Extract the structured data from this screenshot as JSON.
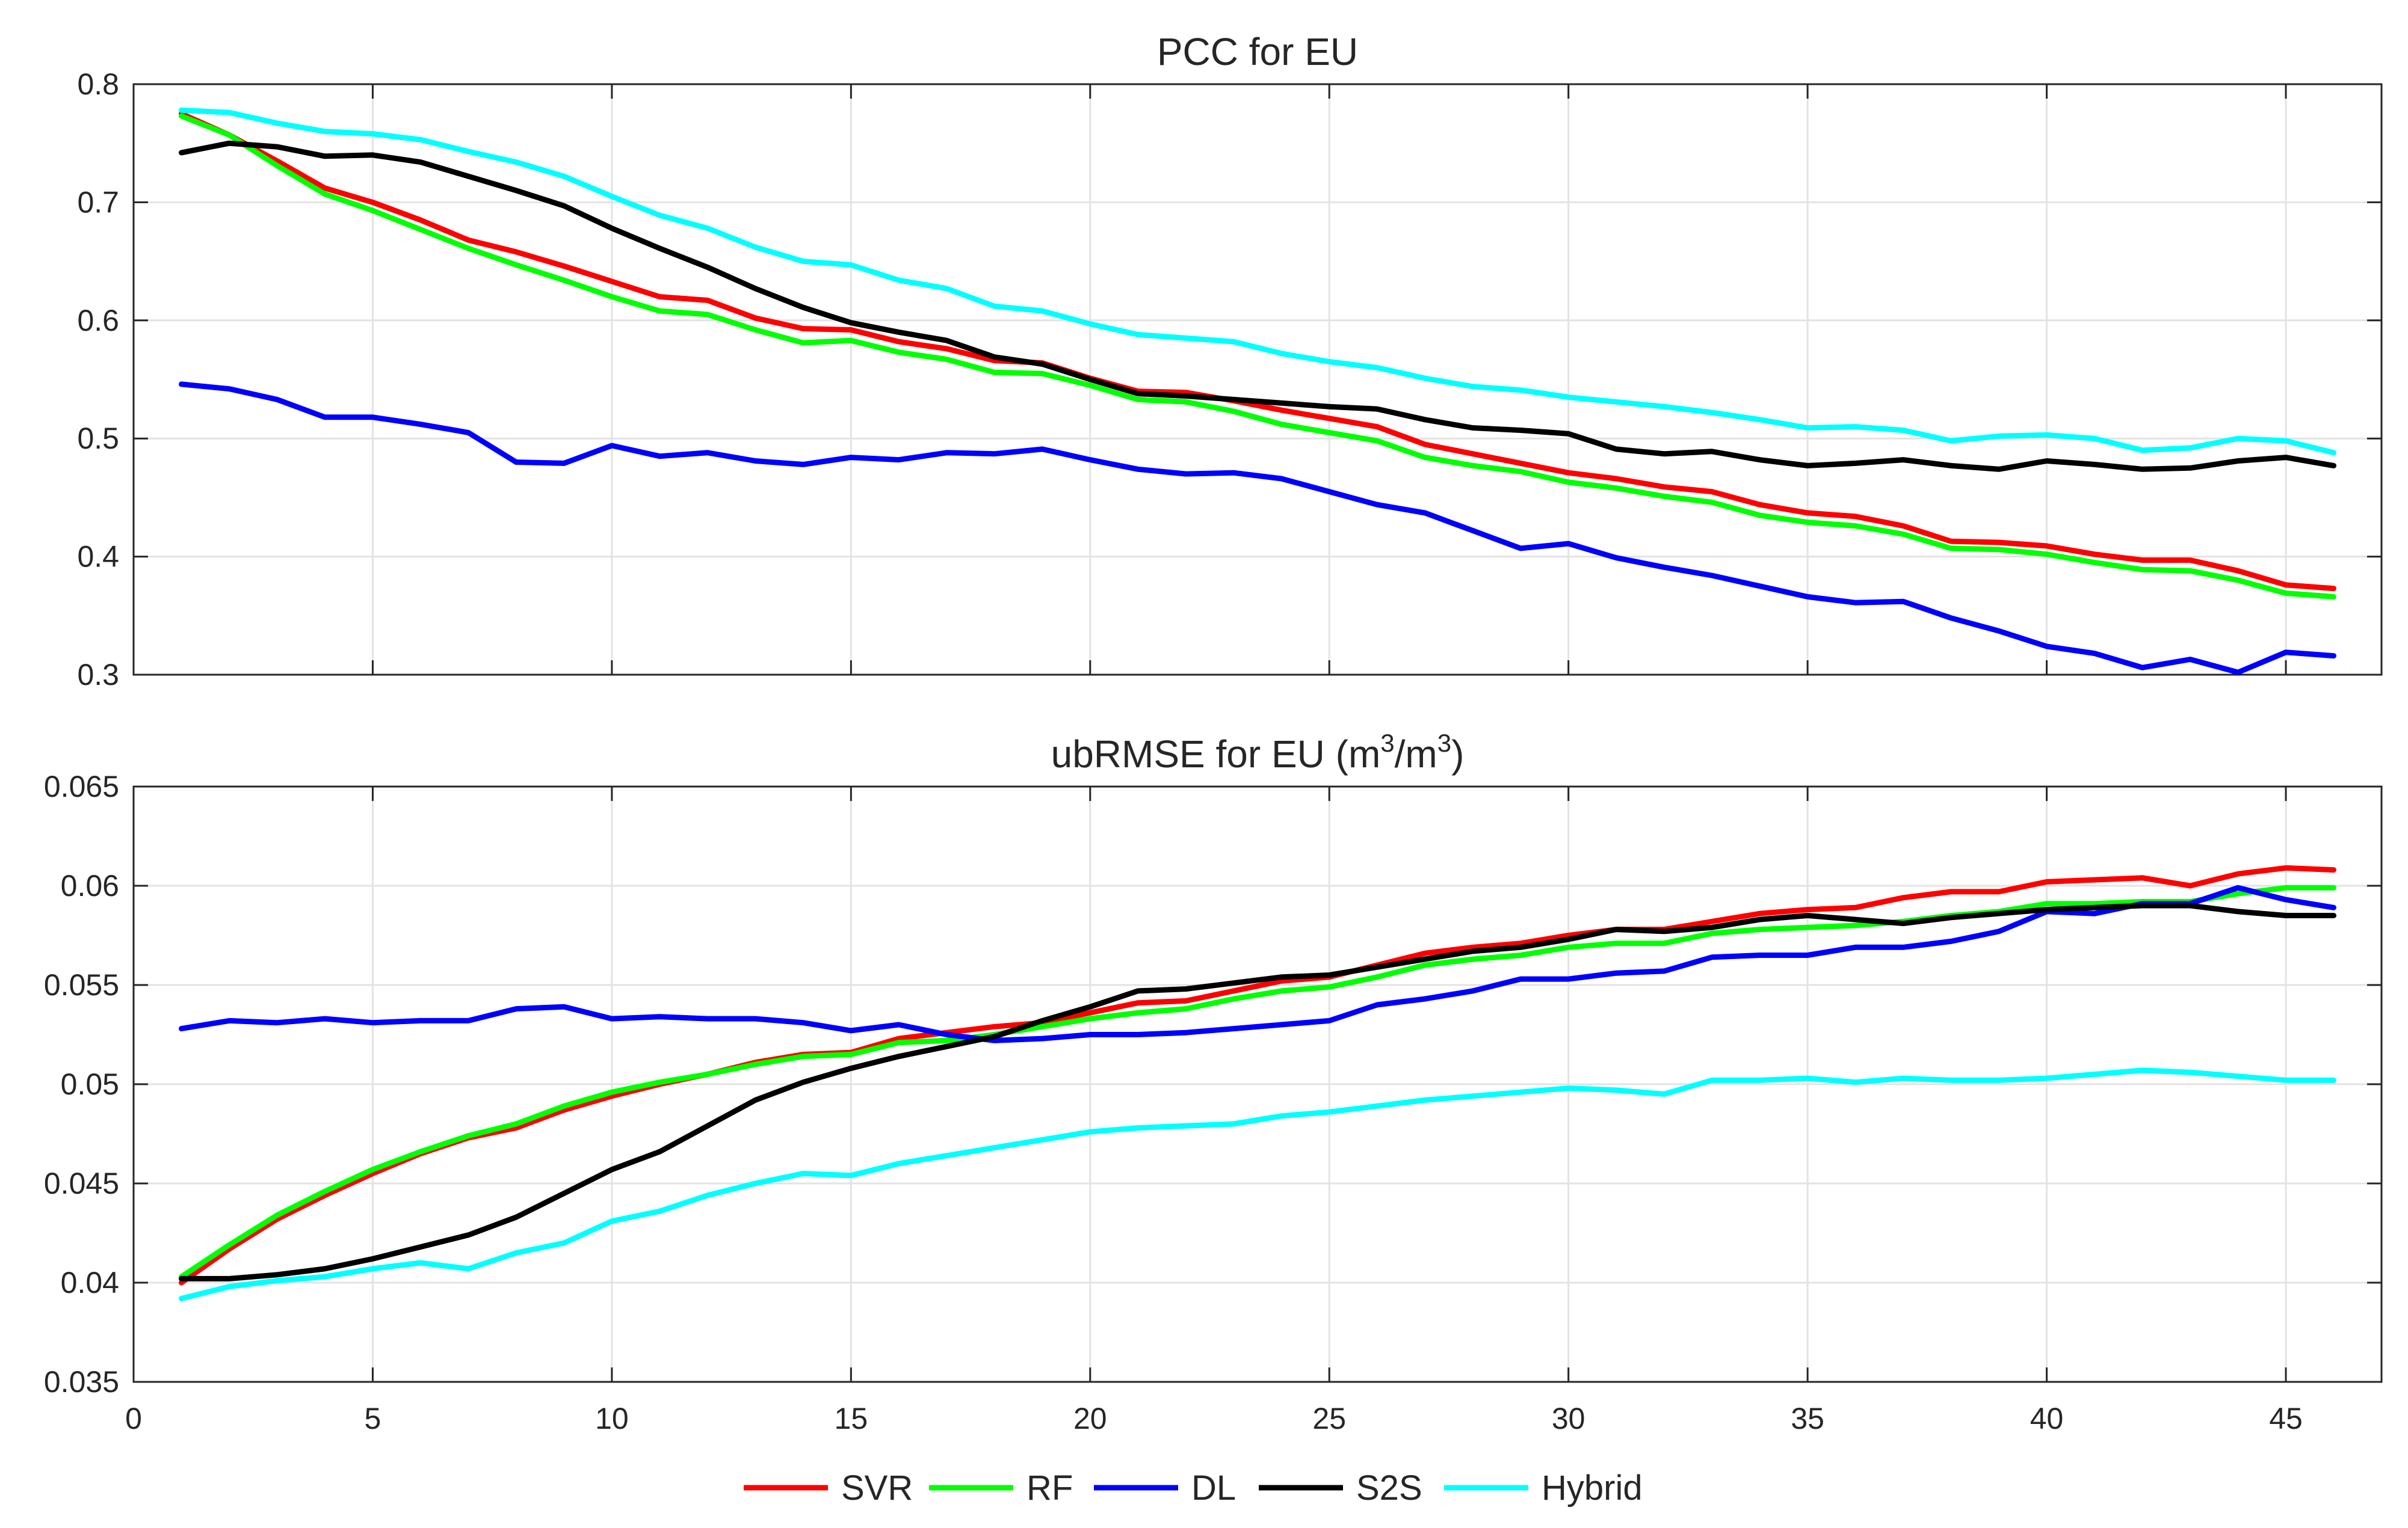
{
  "chart_data": [
    {
      "type": "line",
      "title": "PCC for EU",
      "xlabel": "",
      "ylabel": "",
      "xlim": [
        0,
        47
      ],
      "ylim": [
        0.3,
        0.8
      ],
      "yticks": [
        "0.3",
        "0.4",
        "0.5",
        "0.6",
        "0.7",
        "0.8"
      ],
      "xticks": [],
      "grid": true,
      "x": [
        1,
        2,
        3,
        4,
        5,
        6,
        7,
        8,
        9,
        10,
        11,
        12,
        13,
        14,
        15,
        16,
        17,
        18,
        19,
        20,
        21,
        22,
        23,
        24,
        25,
        26,
        27,
        28,
        29,
        30,
        31,
        32,
        33,
        34,
        35,
        36,
        37,
        38,
        39,
        40,
        41,
        42,
        43,
        44,
        45,
        46
      ],
      "series": [
        {
          "name": "SVR",
          "color": "#ff0000",
          "values": [
            0.775,
            0.757,
            0.735,
            0.712,
            0.7,
            0.685,
            0.668,
            0.658,
            0.646,
            0.633,
            0.62,
            0.617,
            0.602,
            0.593,
            0.592,
            0.582,
            0.576,
            0.566,
            0.564,
            0.551,
            0.54,
            0.539,
            0.532,
            0.524,
            0.517,
            0.51,
            0.495,
            0.487,
            0.479,
            0.471,
            0.466,
            0.459,
            0.455,
            0.444,
            0.437,
            0.434,
            0.426,
            0.413,
            0.412,
            0.409,
            0.402,
            0.397,
            0.397,
            0.388,
            0.376,
            0.373
          ]
        },
        {
          "name": "RF",
          "color": "#00ff00",
          "values": [
            0.773,
            0.757,
            0.731,
            0.707,
            0.693,
            0.677,
            0.661,
            0.647,
            0.634,
            0.62,
            0.608,
            0.605,
            0.592,
            0.581,
            0.583,
            0.573,
            0.567,
            0.556,
            0.555,
            0.545,
            0.533,
            0.531,
            0.523,
            0.512,
            0.505,
            0.498,
            0.484,
            0.477,
            0.472,
            0.463,
            0.458,
            0.451,
            0.446,
            0.435,
            0.429,
            0.426,
            0.419,
            0.407,
            0.406,
            0.402,
            0.395,
            0.389,
            0.388,
            0.38,
            0.369,
            0.366
          ]
        },
        {
          "name": "DL",
          "color": "#0000ff",
          "values": [
            0.546,
            0.542,
            0.533,
            0.518,
            0.518,
            0.512,
            0.505,
            0.48,
            0.479,
            0.494,
            0.485,
            0.488,
            0.481,
            0.478,
            0.484,
            0.482,
            0.488,
            0.487,
            0.491,
            0.482,
            0.474,
            0.47,
            0.471,
            0.466,
            0.455,
            0.444,
            0.437,
            0.422,
            0.407,
            0.411,
            0.399,
            0.391,
            0.384,
            0.375,
            0.366,
            0.361,
            0.362,
            0.348,
            0.337,
            0.324,
            0.318,
            0.306,
            0.313,
            0.302,
            0.319,
            0.316
          ]
        },
        {
          "name": "S2S",
          "color": "#000000",
          "values": [
            0.742,
            0.75,
            0.747,
            0.739,
            0.74,
            0.734,
            0.722,
            0.71,
            0.697,
            0.678,
            0.661,
            0.645,
            0.627,
            0.611,
            0.598,
            0.59,
            0.583,
            0.569,
            0.563,
            0.55,
            0.538,
            0.536,
            0.533,
            0.53,
            0.527,
            0.525,
            0.516,
            0.509,
            0.507,
            0.504,
            0.491,
            0.487,
            0.489,
            0.482,
            0.477,
            0.479,
            0.482,
            0.477,
            0.474,
            0.481,
            0.478,
            0.474,
            0.475,
            0.481,
            0.484,
            0.477
          ]
        },
        {
          "name": "Hybrid",
          "color": "#00ffff",
          "values": [
            0.778,
            0.776,
            0.767,
            0.76,
            0.758,
            0.753,
            0.743,
            0.734,
            0.722,
            0.705,
            0.689,
            0.678,
            0.662,
            0.65,
            0.647,
            0.634,
            0.627,
            0.612,
            0.608,
            0.597,
            0.588,
            0.585,
            0.582,
            0.572,
            0.565,
            0.56,
            0.551,
            0.544,
            0.541,
            0.535,
            0.531,
            0.527,
            0.522,
            0.516,
            0.509,
            0.51,
            0.507,
            0.498,
            0.502,
            0.503,
            0.5,
            0.49,
            0.492,
            0.5,
            0.498,
            0.488
          ]
        }
      ]
    },
    {
      "type": "line",
      "title": "ubRMSE for EU (m3/m3)",
      "title_parts": {
        "before": "ubRMSE for EU (m",
        "sup1": "3",
        "mid": "/m",
        "sup2": "3",
        "after": ")"
      },
      "xlabel": "",
      "ylabel": "",
      "xlim": [
        0,
        47
      ],
      "ylim": [
        0.035,
        0.065
      ],
      "yticks": [
        "0.035",
        "0.04",
        "0.045",
        "0.05",
        "0.055",
        "0.06",
        "0.065"
      ],
      "xticks": [
        "0",
        "5",
        "10",
        "15",
        "20",
        "25",
        "30",
        "35",
        "40",
        "45"
      ],
      "grid": true,
      "x": [
        1,
        2,
        3,
        4,
        5,
        6,
        7,
        8,
        9,
        10,
        11,
        12,
        13,
        14,
        15,
        16,
        17,
        18,
        19,
        20,
        21,
        22,
        23,
        24,
        25,
        26,
        27,
        28,
        29,
        30,
        31,
        32,
        33,
        34,
        35,
        36,
        37,
        38,
        39,
        40,
        41,
        42,
        43,
        44,
        45,
        46
      ],
      "series": [
        {
          "name": "SVR",
          "color": "#ff0000",
          "values": [
            0.04,
            0.0417,
            0.0432,
            0.0444,
            0.0455,
            0.0465,
            0.0473,
            0.0478,
            0.0487,
            0.0494,
            0.05,
            0.0505,
            0.0511,
            0.0515,
            0.0516,
            0.0523,
            0.0526,
            0.0529,
            0.0531,
            0.0536,
            0.0541,
            0.0542,
            0.0547,
            0.0552,
            0.0554,
            0.056,
            0.0566,
            0.0569,
            0.0571,
            0.0575,
            0.0578,
            0.0578,
            0.0582,
            0.0586,
            0.0588,
            0.0589,
            0.0594,
            0.0597,
            0.0597,
            0.0602,
            0.0603,
            0.0604,
            0.06,
            0.0606,
            0.0609,
            0.0608
          ]
        },
        {
          "name": "RF",
          "color": "#00ff00",
          "values": [
            0.0403,
            0.0419,
            0.0434,
            0.0446,
            0.0457,
            0.0466,
            0.0474,
            0.048,
            0.0489,
            0.0496,
            0.0501,
            0.0505,
            0.051,
            0.0514,
            0.0515,
            0.0521,
            0.0522,
            0.0525,
            0.0529,
            0.0533,
            0.0536,
            0.0538,
            0.0543,
            0.0547,
            0.0549,
            0.0554,
            0.056,
            0.0563,
            0.0565,
            0.0569,
            0.0571,
            0.0571,
            0.0576,
            0.0578,
            0.0579,
            0.058,
            0.0582,
            0.0585,
            0.0587,
            0.0591,
            0.0591,
            0.0592,
            0.0592,
            0.0596,
            0.0599,
            0.0599
          ]
        },
        {
          "name": "DL",
          "color": "#0000ff",
          "values": [
            0.0528,
            0.0532,
            0.0531,
            0.0533,
            0.0531,
            0.0532,
            0.0532,
            0.0538,
            0.0539,
            0.0533,
            0.0534,
            0.0533,
            0.0533,
            0.0531,
            0.0527,
            0.053,
            0.0525,
            0.0522,
            0.0523,
            0.0525,
            0.0525,
            0.0526,
            0.0528,
            0.053,
            0.0532,
            0.054,
            0.0543,
            0.0547,
            0.0553,
            0.0553,
            0.0556,
            0.0557,
            0.0564,
            0.0565,
            0.0565,
            0.0569,
            0.0569,
            0.0572,
            0.0577,
            0.0587,
            0.0586,
            0.0591,
            0.0591,
            0.0599,
            0.0593,
            0.0589
          ]
        },
        {
          "name": "S2S",
          "color": "#000000",
          "values": [
            0.0402,
            0.0402,
            0.0404,
            0.0407,
            0.0412,
            0.0418,
            0.0424,
            0.0433,
            0.0445,
            0.0457,
            0.0466,
            0.0479,
            0.0492,
            0.0501,
            0.0508,
            0.0514,
            0.0519,
            0.0524,
            0.0532,
            0.0539,
            0.0547,
            0.0548,
            0.0551,
            0.0554,
            0.0555,
            0.0559,
            0.0563,
            0.0567,
            0.0569,
            0.0573,
            0.0578,
            0.0577,
            0.0579,
            0.0583,
            0.0585,
            0.0583,
            0.0581,
            0.0584,
            0.0586,
            0.0588,
            0.0589,
            0.059,
            0.059,
            0.0587,
            0.0585,
            0.0585
          ]
        },
        {
          "name": "Hybrid",
          "color": "#00ffff",
          "values": [
            0.0392,
            0.0398,
            0.0401,
            0.0403,
            0.0407,
            0.041,
            0.0407,
            0.0415,
            0.042,
            0.0431,
            0.0436,
            0.0444,
            0.045,
            0.0455,
            0.0454,
            0.046,
            0.0464,
            0.0468,
            0.0472,
            0.0476,
            0.0478,
            0.0479,
            0.048,
            0.0484,
            0.0486,
            0.0489,
            0.0492,
            0.0494,
            0.0496,
            0.0498,
            0.0497,
            0.0495,
            0.0502,
            0.0502,
            0.0503,
            0.0501,
            0.0503,
            0.0502,
            0.0502,
            0.0503,
            0.0505,
            0.0507,
            0.0506,
            0.0504,
            0.0502,
            0.0502
          ]
        }
      ]
    }
  ],
  "legend": {
    "placement": "bottom-center",
    "items": [
      {
        "name": "SVR",
        "color": "#ff0000"
      },
      {
        "name": "RF",
        "color": "#00ff00"
      },
      {
        "name": "DL",
        "color": "#0000ff"
      },
      {
        "name": "S2S",
        "color": "#000000"
      },
      {
        "name": "Hybrid",
        "color": "#00ffff"
      }
    ]
  }
}
